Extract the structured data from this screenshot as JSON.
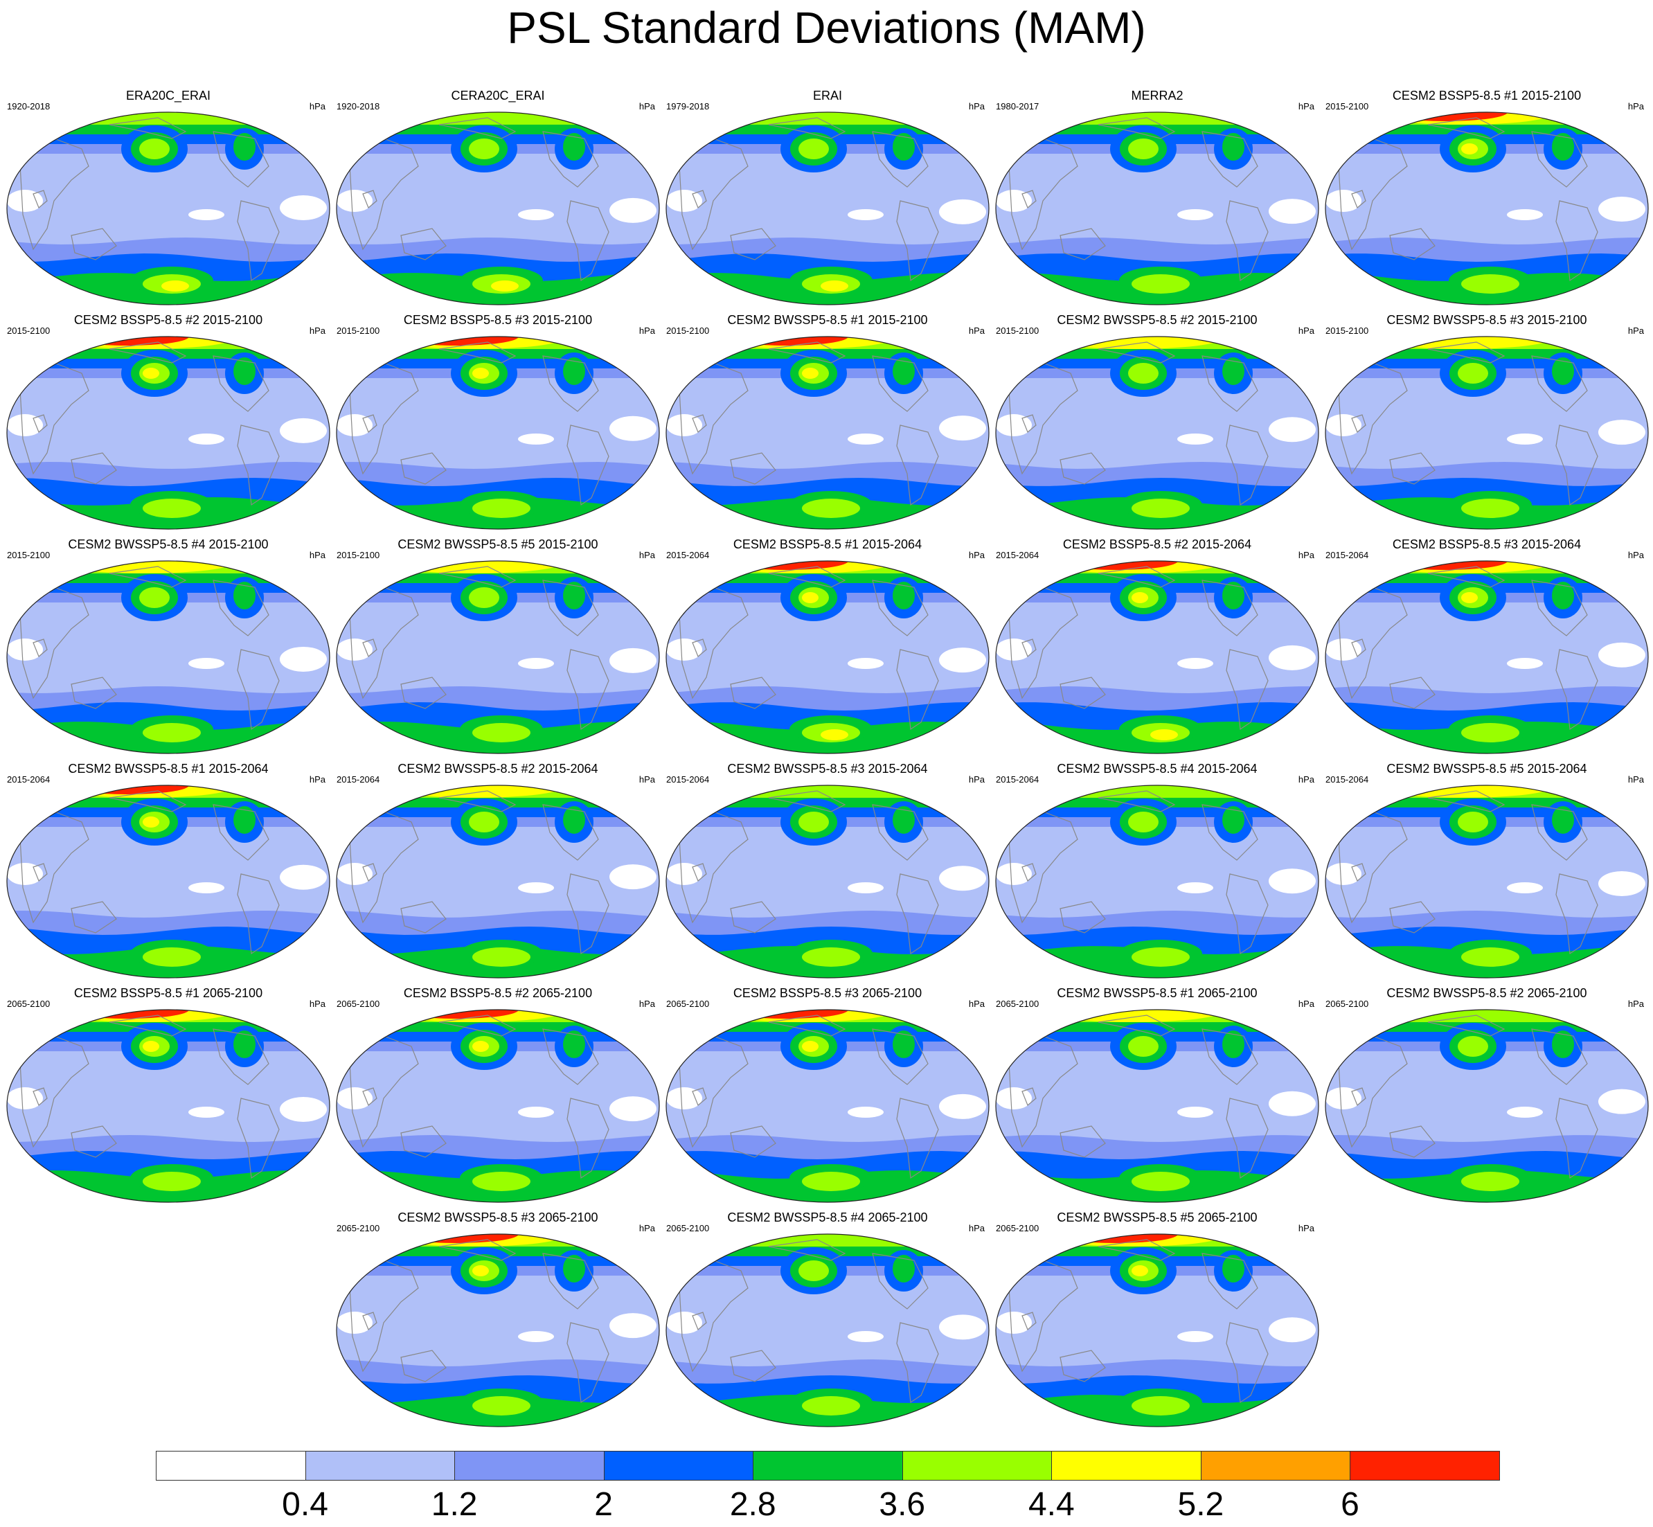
{
  "title": "PSL Standard Deviations (MAM)",
  "colorbar": {
    "colors": [
      "#ffffff",
      "#b0c0f8",
      "#7f95f5",
      "#0060ff",
      "#00c530",
      "#99ff00",
      "#ffff00",
      "#ffa000",
      "#ff2200"
    ],
    "labels": [
      "0.4",
      "1.2",
      "2",
      "2.8",
      "3.6",
      "4.4",
      "5.2",
      "6"
    ]
  },
  "panels": [
    {
      "title": "ERA20C_ERAI",
      "left": "1920-2018",
      "right": "hPa",
      "n": 3,
      "s": 3
    },
    {
      "title": "CERA20C_ERAI",
      "left": "1920-2018",
      "right": "hPa",
      "n": 3,
      "s": 3
    },
    {
      "title": "ERAI",
      "left": "1979-2018",
      "right": "hPa",
      "n": 3,
      "s": 3
    },
    {
      "title": "MERRA2",
      "left": "1980-2017",
      "right": "hPa",
      "n": 3,
      "s": 2
    },
    {
      "title": "CESM2 BSSP5-8.5 #1 2015-2100",
      "left": "2015-2100",
      "right": "hPa",
      "n": 5,
      "s": 2
    },
    {
      "title": "CESM2 BSSP5-8.5 #2 2015-2100",
      "left": "2015-2100",
      "right": "hPa",
      "n": 5,
      "s": 2
    },
    {
      "title": "CESM2 BSSP5-8.5 #3 2015-2100",
      "left": "2015-2100",
      "right": "hPa",
      "n": 5,
      "s": 2
    },
    {
      "title": "CESM2 BWSSP5-8.5 #1 2015-2100",
      "left": "2015-2100",
      "right": "hPa",
      "n": 5,
      "s": 2
    },
    {
      "title": "CESM2 BWSSP5-8.5 #2 2015-2100",
      "left": "2015-2100",
      "right": "hPa",
      "n": 4,
      "s": 2
    },
    {
      "title": "CESM2 BWSSP5-8.5 #3 2015-2100",
      "left": "2015-2100",
      "right": "hPa",
      "n": 4,
      "s": 2
    },
    {
      "title": "CESM2 BWSSP5-8.5 #4 2015-2100",
      "left": "2015-2100",
      "right": "hPa",
      "n": 4,
      "s": 2
    },
    {
      "title": "CESM2 BWSSP5-8.5 #5 2015-2100",
      "left": "2015-2100",
      "right": "hPa",
      "n": 4,
      "s": 2
    },
    {
      "title": "CESM2 BSSP5-8.5 #1 2015-2064",
      "left": "2015-2064",
      "right": "hPa",
      "n": 5,
      "s": 3
    },
    {
      "title": "CESM2 BSSP5-8.5 #2 2015-2064",
      "left": "2015-2064",
      "right": "hPa",
      "n": 5,
      "s": 3
    },
    {
      "title": "CESM2 BSSP5-8.5 #3 2015-2064",
      "left": "2015-2064",
      "right": "hPa",
      "n": 5,
      "s": 2
    },
    {
      "title": "CESM2 BWSSP5-8.5 #1 2015-2064",
      "left": "2015-2064",
      "right": "hPa",
      "n": 5,
      "s": 2
    },
    {
      "title": "CESM2 BWSSP5-8.5 #2 2015-2064",
      "left": "2015-2064",
      "right": "hPa",
      "n": 4,
      "s": 2
    },
    {
      "title": "CESM2 BWSSP5-8.5 #3 2015-2064",
      "left": "2015-2064",
      "right": "hPa",
      "n": 3,
      "s": 2
    },
    {
      "title": "CESM2 BWSSP5-8.5 #4 2015-2064",
      "left": "2015-2064",
      "right": "hPa",
      "n": 3,
      "s": 2
    },
    {
      "title": "CESM2 BWSSP5-8.5 #5 2015-2064",
      "left": "2015-2064",
      "right": "hPa",
      "n": 4,
      "s": 2
    },
    {
      "title": "CESM2 BSSP5-8.5 #1 2065-2100",
      "left": "2065-2100",
      "right": "hPa",
      "n": 5,
      "s": 2
    },
    {
      "title": "CESM2 BSSP5-8.5 #2 2065-2100",
      "left": "2065-2100",
      "right": "hPa",
      "n": 5,
      "s": 2
    },
    {
      "title": "CESM2 BSSP5-8.5 #3 2065-2100",
      "left": "2065-2100",
      "right": "hPa",
      "n": 5,
      "s": 2
    },
    {
      "title": "CESM2 BWSSP5-8.5 #1 2065-2100",
      "left": "2065-2100",
      "right": "hPa",
      "n": 4,
      "s": 2
    },
    {
      "title": "CESM2 BWSSP5-8.5 #2 2065-2100",
      "left": "2065-2100",
      "right": "hPa",
      "n": 3,
      "s": 2
    },
    {
      "title": "CESM2 BWSSP5-8.5 #3 2065-2100",
      "left": "2065-2100",
      "right": "hPa",
      "n": 5,
      "s": 2
    },
    {
      "title": "CESM2 BWSSP5-8.5 #4 2065-2100",
      "left": "2065-2100",
      "right": "hPa",
      "n": 3,
      "s": 2
    },
    {
      "title": "CESM2 BWSSP5-8.5 #5 2065-2100",
      "left": "2065-2100",
      "right": "hPa",
      "n": 5,
      "s": 2
    }
  ]
}
